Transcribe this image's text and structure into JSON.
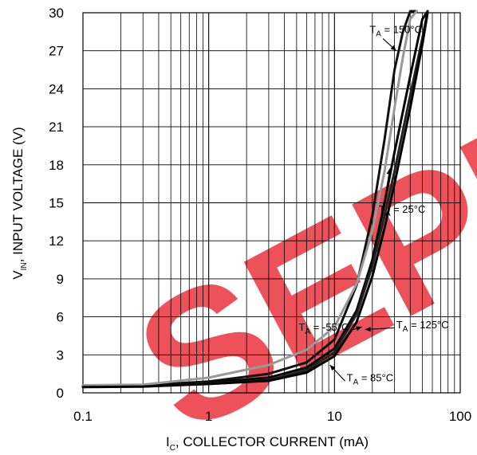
{
  "chart_data": {
    "type": "line",
    "xlabel": {
      "main": "I",
      "sub": "C",
      "rest": ", COLLECTOR CURRENT (mA)"
    },
    "ylabel": {
      "main": "V",
      "sub": "IN",
      "rest": ", INPUT VOLTAGE (V)"
    },
    "x_scale": "log",
    "xlim": [
      0.1,
      100
    ],
    "ylim": [
      0,
      30
    ],
    "x_ticks": [
      {
        "value": 0.1,
        "label": "0.1"
      },
      {
        "value": 1,
        "label": "1"
      },
      {
        "value": 10,
        "label": "10"
      },
      {
        "value": 100,
        "label": "100"
      }
    ],
    "y_ticks": [
      {
        "value": 0,
        "label": "0"
      },
      {
        "value": 3,
        "label": "3"
      },
      {
        "value": 6,
        "label": "6"
      },
      {
        "value": 9,
        "label": "9"
      },
      {
        "value": 12,
        "label": "12"
      },
      {
        "value": 15,
        "label": "15"
      },
      {
        "value": 18,
        "label": "18"
      },
      {
        "value": 21,
        "label": "21"
      },
      {
        "value": 24,
        "label": "24"
      },
      {
        "value": 27,
        "label": "27"
      },
      {
        "value": 30,
        "label": "30"
      }
    ],
    "grid": true,
    "series": [
      {
        "id": "t150",
        "color": "#111111",
        "x": [
          0.1,
          0.3,
          1,
          3,
          6,
          10,
          15,
          20,
          25,
          30,
          35,
          40,
          45
        ],
        "y": [
          0.6,
          0.6,
          0.9,
          1.5,
          2.4,
          4.2,
          8.5,
          14,
          20,
          25.5,
          28.5,
          30.5,
          31
        ]
      },
      {
        "id": "t25",
        "color": "#000000",
        "x": [
          0.1,
          0.3,
          1,
          3,
          6,
          10,
          15,
          20,
          25,
          30,
          40,
          50,
          55
        ],
        "y": [
          0.5,
          0.55,
          0.8,
          1.2,
          2.0,
          3.5,
          6.5,
          10.5,
          15,
          19,
          25,
          29.5,
          31
        ]
      },
      {
        "id": "t125",
        "color": "#222222",
        "x": [
          0.1,
          0.3,
          1,
          3,
          6,
          10,
          15,
          20,
          25,
          30,
          40,
          50,
          55
        ],
        "y": [
          0.5,
          0.5,
          0.75,
          1.0,
          1.8,
          3.2,
          6.2,
          10,
          14,
          17.5,
          23.5,
          28,
          30.5
        ]
      },
      {
        "id": "tm55",
        "color": "#999999",
        "x": [
          0.1,
          0.3,
          1,
          3,
          6,
          10,
          15,
          20,
          25,
          30,
          35,
          40,
          45
        ],
        "y": [
          0.6,
          0.65,
          1.2,
          2.2,
          3.4,
          5.2,
          8.6,
          12.8,
          17.5,
          22.5,
          26.5,
          29.5,
          31
        ]
      },
      {
        "id": "t85",
        "color": "#000000",
        "x": [
          0.1,
          0.3,
          1,
          3,
          6,
          10,
          15,
          20,
          25,
          30,
          40,
          50,
          55
        ],
        "y": [
          0.45,
          0.5,
          0.7,
          0.95,
          1.6,
          2.9,
          5.6,
          9.2,
          13,
          16.5,
          22.5,
          27.5,
          30
        ]
      }
    ],
    "annotations": [
      {
        "id": "a150",
        "main": "T",
        "sub": "A",
        "rest": " = 150°C",
        "x": 19,
        "y": 28.4,
        "arrow_to": [
          31,
          27
        ]
      },
      {
        "id": "a25",
        "main": "T",
        "sub": "A",
        "rest": " = 25°C",
        "x": 22.5,
        "y": 14.2,
        "arrow_to": [
          27.5,
          17.7
        ]
      },
      {
        "id": "am55",
        "main": "T",
        "sub": "A",
        "rest": " = -55°C",
        "x": 5.2,
        "y": 4.9,
        "arrow_to": [
          16.5,
          5.2
        ]
      },
      {
        "id": "a125",
        "main": "T",
        "sub": "A",
        "rest": " = 125°C",
        "x": 31,
        "y": 5.1,
        "arrow_to": [
          17.5,
          5.0
        ]
      },
      {
        "id": "a85",
        "main": "T",
        "sub": "A",
        "rest": " = 85°C",
        "x": 12.5,
        "y": 0.9,
        "arrow_to": [
          9.2,
          2.2
        ]
      }
    ],
    "watermark": {
      "text": "SEPH",
      "color": "#e8202a"
    }
  }
}
